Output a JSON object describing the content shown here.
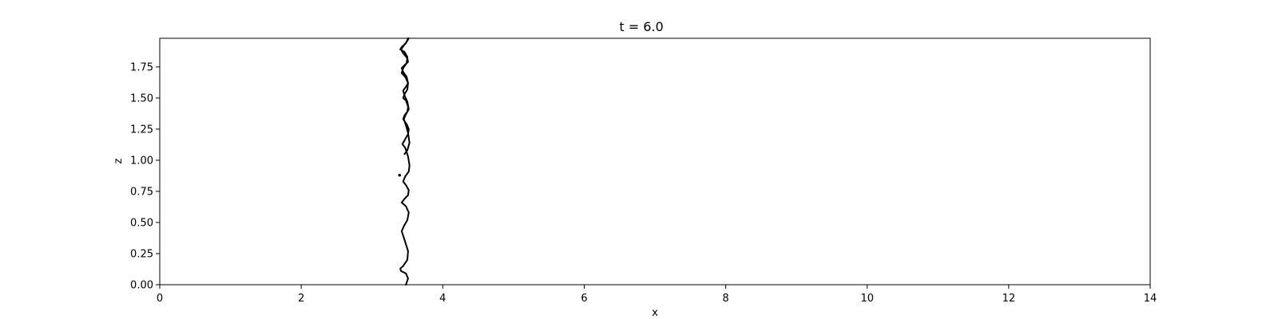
{
  "chart_data": {
    "type": "line",
    "title": "t = 6.0",
    "xlabel": "x",
    "ylabel": "z",
    "xlim": [
      0,
      14
    ],
    "ylim": [
      0,
      1.98
    ],
    "grid": false,
    "xticks": [
      0,
      2,
      4,
      6,
      8,
      10,
      12,
      14
    ],
    "xtick_labels": [
      "0",
      "2",
      "4",
      "6",
      "8",
      "10",
      "12",
      "14"
    ],
    "yticks": [
      0,
      0.25,
      0.5,
      0.75,
      1.0,
      1.25,
      1.5,
      1.75
    ],
    "ytick_labels": [
      "0.00",
      "0.25",
      "0.50",
      "0.75",
      "1.00",
      "1.25",
      "1.50",
      "1.75"
    ],
    "line_color": "#000000",
    "series": [
      {
        "x": [
          3.48,
          3.51,
          3.48,
          3.41,
          3.4,
          3.44,
          3.5,
          3.51,
          3.46,
          3.42,
          3.45,
          3.5,
          3.52,
          3.48,
          3.42,
          3.46,
          3.51,
          3.52,
          3.48,
          3.44,
          3.47,
          3.52,
          3.53,
          3.51,
          3.47,
          3.43,
          3.47,
          3.51,
          3.52,
          3.49,
          3.44,
          3.46,
          3.5,
          3.51,
          3.48,
          3.44,
          3.46,
          3.5,
          3.51,
          3.47,
          3.42,
          3.44,
          3.49,
          3.5,
          3.46,
          3.4,
          3.42,
          3.48,
          3.51,
          3.52,
          3.5,
          3.46,
          3.41,
          3.44,
          3.5,
          3.51,
          3.47,
          3.42,
          3.44,
          3.49,
          3.51,
          3.48,
          3.44,
          3.46,
          3.5,
          3.52,
          3.48,
          3.45,
          3.48,
          3.51,
          3.53,
          3.5,
          3.46
        ],
        "y": [
          0.0,
          0.05,
          0.09,
          0.11,
          0.13,
          0.15,
          0.2,
          0.27,
          0.36,
          0.43,
          0.47,
          0.52,
          0.58,
          0.63,
          0.66,
          0.69,
          0.72,
          0.76,
          0.8,
          0.83,
          0.87,
          0.91,
          0.96,
          1.03,
          1.1,
          1.13,
          1.17,
          1.21,
          1.25,
          1.29,
          1.33,
          1.36,
          1.39,
          1.43,
          1.48,
          1.5,
          1.53,
          1.57,
          1.62,
          1.67,
          1.7,
          1.74,
          1.78,
          1.83,
          1.87,
          1.89,
          1.91,
          1.94,
          1.98,
          1.98,
          1.96,
          1.93,
          1.89,
          1.86,
          1.82,
          1.79,
          1.77,
          1.74,
          1.71,
          1.67,
          1.62,
          1.59,
          1.56,
          1.52,
          1.47,
          1.41,
          1.37,
          1.33,
          1.28,
          1.22,
          1.14,
          1.08,
          1.05
        ]
      }
    ],
    "markers": [
      {
        "x": 3.39,
        "y": 0.88
      }
    ]
  }
}
